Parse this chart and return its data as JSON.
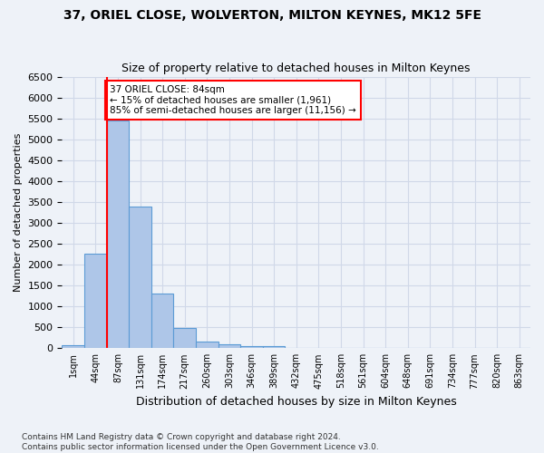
{
  "title1": "37, ORIEL CLOSE, WOLVERTON, MILTON KEYNES, MK12 5FE",
  "title2": "Size of property relative to detached houses in Milton Keynes",
  "xlabel": "Distribution of detached houses by size in Milton Keynes",
  "ylabel": "Number of detached properties",
  "footer1": "Contains HM Land Registry data © Crown copyright and database right 2024.",
  "footer2": "Contains public sector information licensed under the Open Government Licence v3.0.",
  "bin_labels": [
    "1sqm",
    "44sqm",
    "87sqm",
    "131sqm",
    "174sqm",
    "217sqm",
    "260sqm",
    "303sqm",
    "346sqm",
    "389sqm",
    "432sqm",
    "475sqm",
    "518sqm",
    "561sqm",
    "604sqm",
    "648sqm",
    "691sqm",
    "734sqm",
    "777sqm",
    "820sqm",
    "863sqm"
  ],
  "bar_heights": [
    75,
    2270,
    5450,
    3380,
    1310,
    480,
    165,
    90,
    55,
    40,
    0,
    0,
    0,
    0,
    0,
    0,
    0,
    0,
    0,
    0,
    0
  ],
  "bar_color": "#aec6e8",
  "bar_edge_color": "#5b9bd5",
  "annotation_text1": "37 ORIEL CLOSE: 84sqm",
  "annotation_text2": "← 15% of detached houses are smaller (1,961)",
  "annotation_text3": "85% of semi-detached houses are larger (11,156) →",
  "annotation_box_color": "#ffffff",
  "annotation_border_color": "#ff0000",
  "highlight_line_color": "#ff0000",
  "grid_color": "#d0d8e8",
  "bg_color": "#eef2f8",
  "ylim": [
    0,
    6500
  ],
  "yticks": [
    0,
    500,
    1000,
    1500,
    2000,
    2500,
    3000,
    3500,
    4000,
    4500,
    5000,
    5500,
    6000,
    6500
  ]
}
